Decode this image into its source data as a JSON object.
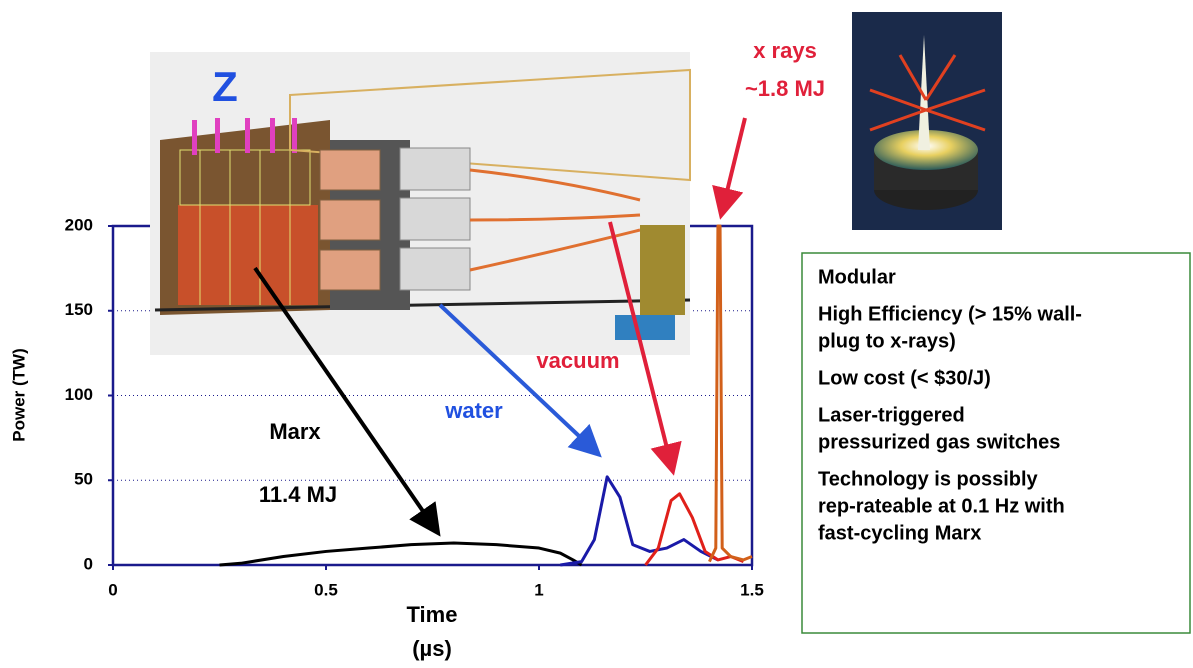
{
  "chart_data": {
    "type": "line",
    "x_label": "Time",
    "x_unit": "(µs)",
    "y_label": "Power (TW)",
    "xlim": [
      0,
      1.5
    ],
    "xticks": [
      0,
      0.5,
      1,
      1.5
    ],
    "ylim": [
      0,
      200
    ],
    "yticks": [
      0,
      50,
      100,
      150,
      200
    ],
    "grid": true,
    "series": [
      {
        "color": "#000000",
        "x": [
          0.25,
          0.3,
          0.4,
          0.5,
          0.6,
          0.7,
          0.8,
          0.9,
          1.0,
          1.05,
          1.08,
          1.1
        ],
        "values": [
          0,
          1,
          5,
          8,
          10,
          12,
          13,
          12,
          10,
          7,
          3,
          0
        ]
      },
      {
        "color": "#1a1aa8",
        "x": [
          1.05,
          1.1,
          1.13,
          1.16,
          1.19,
          1.22,
          1.26,
          1.3,
          1.34,
          1.38,
          1.42
        ],
        "values": [
          0,
          2,
          15,
          52,
          40,
          12,
          8,
          10,
          15,
          8,
          3
        ]
      },
      {
        "color": "#e0201a",
        "x": [
          1.25,
          1.28,
          1.31,
          1.33,
          1.36,
          1.39,
          1.42,
          1.45,
          1.48
        ],
        "values": [
          0,
          10,
          38,
          42,
          28,
          8,
          3,
          5,
          2
        ]
      },
      {
        "color": "#d2601a",
        "x": [
          1.4,
          1.415,
          1.42,
          1.425,
          1.43,
          1.45,
          1.48,
          1.5
        ],
        "values": [
          2,
          10,
          200,
          200,
          10,
          5,
          3,
          5
        ]
      }
    ],
    "annotations": [
      {
        "text": "Z"
      },
      {
        "text": "x rays"
      },
      {
        "text": "~1.8 MJ"
      },
      {
        "text": "vacuum"
      },
      {
        "text": "water"
      },
      {
        "text": "Marx"
      },
      {
        "text": "11.4 MJ"
      }
    ],
    "features": [
      [
        "Modular"
      ],
      [
        "High Efficiency (> 15% wall-",
        "plug to x-rays)"
      ],
      [
        "Low cost (< $30/J)"
      ],
      [
        "Laser-triggered",
        "pressurized gas switches"
      ],
      [
        "Technology is possibly",
        "rep-rateable at 0.1 Hz with",
        "fast-cycling Marx"
      ]
    ]
  }
}
